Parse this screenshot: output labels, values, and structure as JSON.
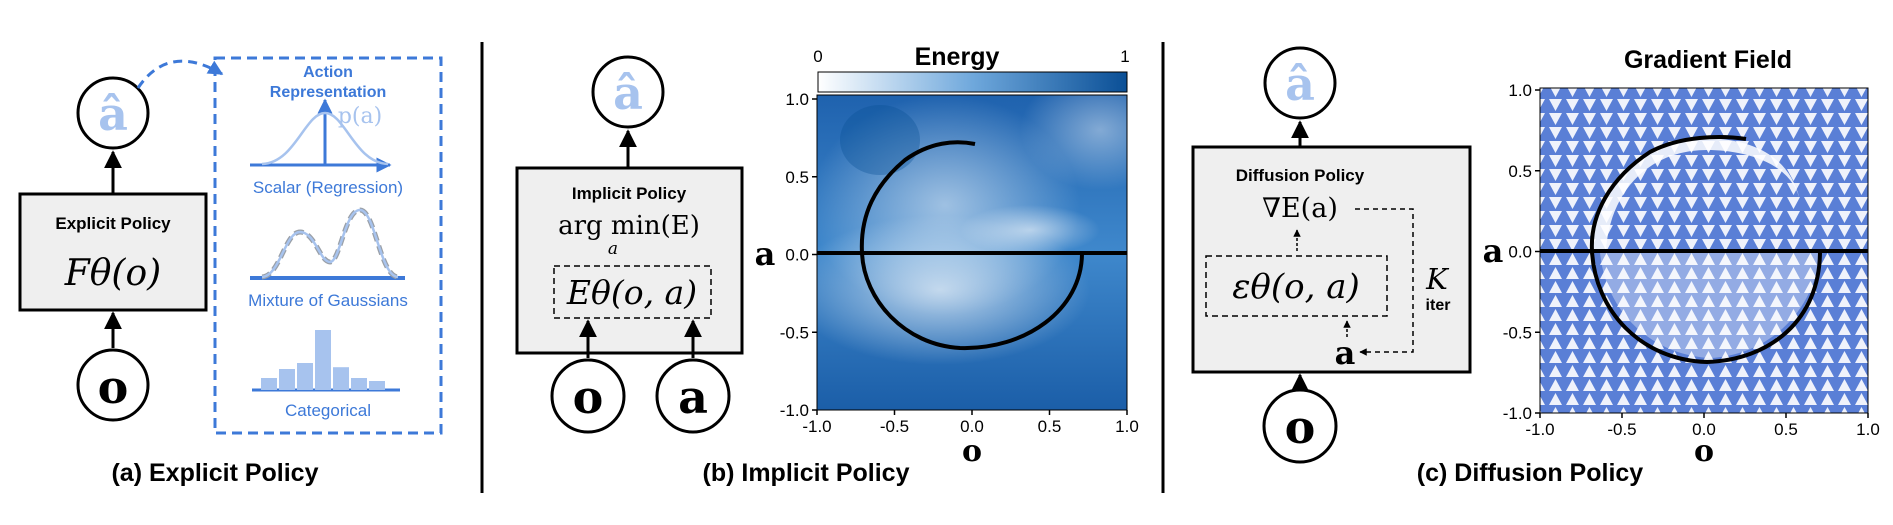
{
  "panel_a": {
    "caption": "(a) Explicit Policy",
    "output_symbol": "â",
    "input_symbol": "o",
    "policy_label": "Explicit Policy",
    "policy_formula": "Fθ(o)",
    "representation_title_line1": "Action",
    "representation_title_line2": "Representation",
    "prob_label": "p(a)",
    "scalar_label": "Scalar (Regression)",
    "mog_label": "Mixture of Gaussians",
    "categorical_label": "Categorical",
    "categorical_heights": [
      0.2,
      0.35,
      0.45,
      1.0,
      0.38,
      0.2,
      0.15
    ]
  },
  "panel_b": {
    "caption": "(b) Implicit Policy",
    "output_symbol": "â",
    "input_o": "o",
    "input_a": "a",
    "policy_label": "Implicit Policy",
    "argmin_text": "arg min(E)",
    "argmin_sub": "a",
    "energy_formula": "Eθ(o, a)",
    "colorbar_title": "Energy",
    "colorbar_min": "0",
    "colorbar_max": "1",
    "xlabel": "o",
    "ylabel": "a",
    "xticks": [
      "-1.0",
      "-0.5",
      "0.0",
      "0.5",
      "1.0"
    ],
    "yticks": [
      "1.0",
      "0.5",
      "0.0",
      "-0.5",
      "-1.0"
    ]
  },
  "panel_c": {
    "caption": "(c) Diffusion Policy",
    "output_symbol": "â",
    "input_o": "o",
    "noisy_action": "a",
    "policy_label": "Diffusion Policy",
    "grad_formula": "∇E(a)",
    "eps_formula": "εθ(o, a)",
    "iter_K": "K",
    "iter_sub": "iter",
    "plot_title": "Gradient Field",
    "xlabel": "o",
    "ylabel": "a",
    "xticks": [
      "-1.0",
      "-0.5",
      "0.0",
      "0.5",
      "1.0"
    ],
    "yticks": [
      "1.0",
      "0.5",
      "0.0",
      "-0.5",
      "-1.0"
    ]
  },
  "colors": {
    "accent_blue": "#3d79d8",
    "light_blue": "#a7c3ee",
    "box_fill": "#efefef",
    "heatmap_dark": "#0a4f96",
    "heatmap_light": "#ffffff",
    "arrow_blue": "#5a7fd6"
  }
}
